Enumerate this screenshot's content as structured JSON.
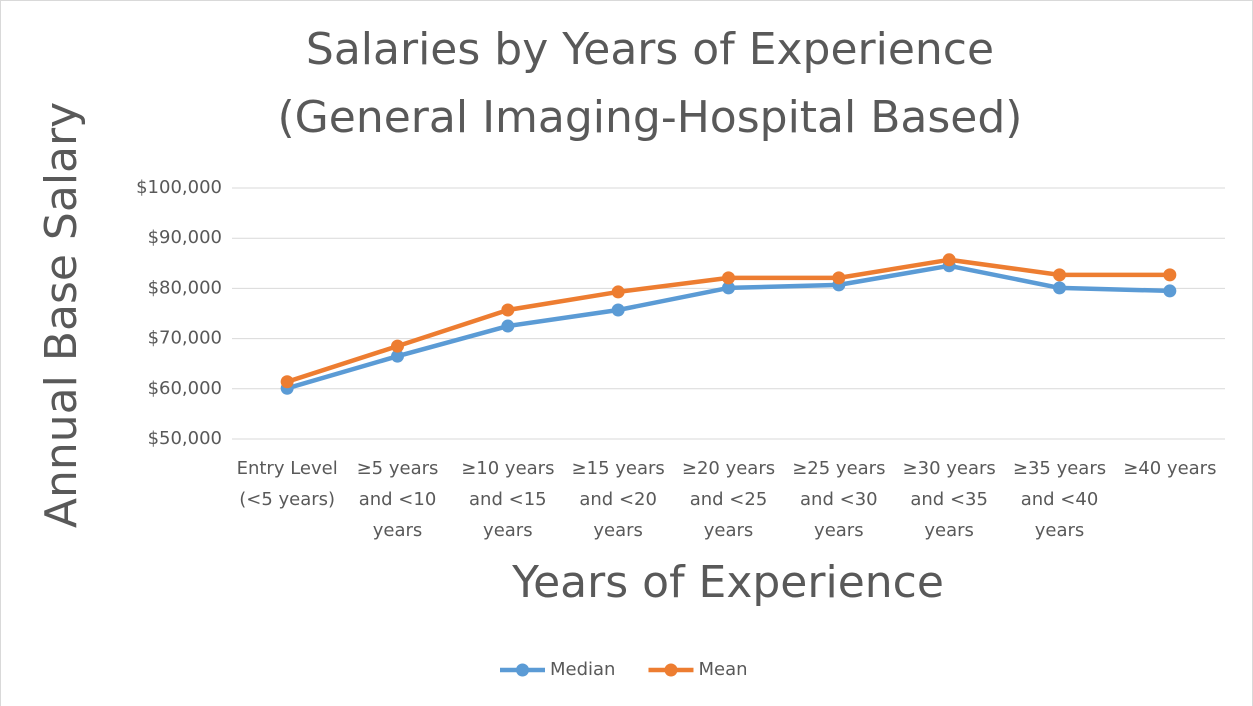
{
  "chart_data": {
    "type": "line",
    "title": [
      "Salaries by Years of Experience",
      "(General Imaging-Hospital Based)"
    ],
    "x_label": "Years of Experience",
    "y_label": "Annual Base Salary",
    "categories": [
      "Entry Level (<5 years)",
      "≥5 years and <10 years",
      "≥10 years and <15 years",
      "≥15 years and <20 years",
      "≥20 years and <25 years",
      "≥25 years and <30 years",
      "≥30 years and <35 years",
      "≥35 years and <40 years",
      "≥40 years"
    ],
    "series": [
      {
        "name": "Median",
        "color": "#5b9bd5",
        "values": [
          60100,
          66500,
          72500,
          75700,
          80100,
          80700,
          84500,
          80100,
          79500
        ]
      },
      {
        "name": "Mean",
        "color": "#ed7d31",
        "values": [
          61400,
          68500,
          75700,
          79300,
          82100,
          82100,
          85700,
          82700,
          82700
        ]
      }
    ],
    "ylim": [
      50000,
      100000
    ],
    "yticks": [
      {
        "value": 50000,
        "label": "$50,000"
      },
      {
        "value": 60000,
        "label": "$60,000"
      },
      {
        "value": 70000,
        "label": "$70,000"
      },
      {
        "value": 80000,
        "label": "$80,000"
      },
      {
        "value": 90000,
        "label": "$90,000"
      },
      {
        "value": 100000,
        "label": "$100,000"
      }
    ],
    "grid": true,
    "legend": "bottom"
  }
}
